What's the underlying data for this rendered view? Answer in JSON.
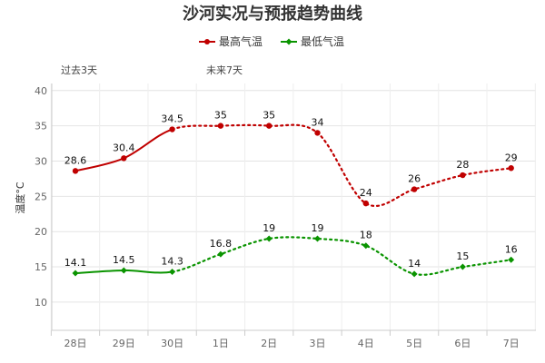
{
  "chart_data": {
    "type": "line",
    "title": "沙河实况与预报趋势曲线",
    "ylabel": "温度°C",
    "xlabel": "",
    "categories": [
      "28日",
      "29日",
      "30日",
      "1日",
      "2日",
      "3日",
      "4日",
      "5日",
      "6日",
      "7日"
    ],
    "ylim": [
      6,
      41
    ],
    "yticks": [
      10,
      15,
      20,
      25,
      30,
      35,
      40
    ],
    "grid": true,
    "legend_position": "top-center",
    "segments": {
      "past_label": "过去3天",
      "future_label": "未来7天"
    },
    "observed_until_index": 2,
    "series": [
      {
        "name": "最高气温",
        "color": "#c00000",
        "values": [
          28.6,
          30.4,
          34.5,
          35,
          35,
          34,
          24,
          26,
          28,
          29
        ],
        "labels": [
          "28.6",
          "30.4",
          "34.5",
          "35",
          "35",
          "34",
          "24",
          "26",
          "28",
          "29"
        ]
      },
      {
        "name": "最低气温",
        "color": "#0a9400",
        "values": [
          14.1,
          14.5,
          14.3,
          16.8,
          19,
          19,
          18,
          14,
          15,
          16
        ],
        "labels": [
          "14.1",
          "14.5",
          "14.3",
          "16.8",
          "19",
          "19",
          "18",
          "14",
          "15",
          "16"
        ]
      }
    ]
  }
}
